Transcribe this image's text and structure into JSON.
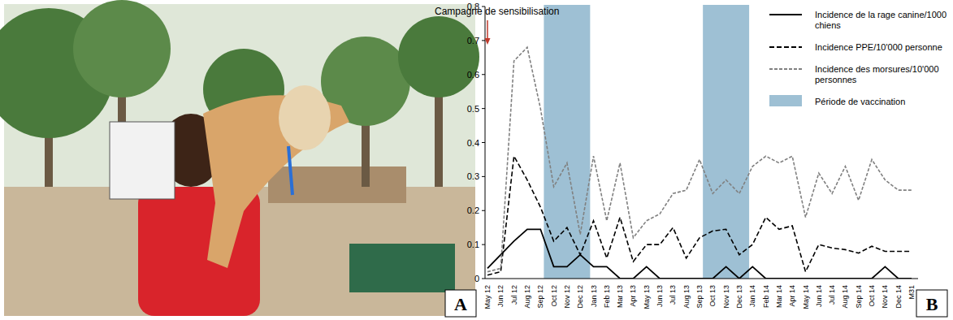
{
  "panel_labels": [
    "A",
    "B"
  ],
  "chart_data": {
    "type": "line",
    "categories": [
      "May 12",
      "Jun 12",
      "Jul 12",
      "Aug 12",
      "Sep 12",
      "Oct 12",
      "Nov 12",
      "Dec 12",
      "Jan 13",
      "Feb 13",
      "Mar 13",
      "Apr 13",
      "May 13",
      "Jun 13",
      "Jul 13",
      "Aug 13",
      "Sep 13",
      "Oct 13",
      "Nov 13",
      "Dec 13",
      "Jan 14",
      "Feb 14",
      "Mar 14",
      "Apr 14",
      "May 14",
      "Jun 14",
      "Jul 14",
      "Aug 14",
      "Sep 14",
      "Oct 14",
      "Nov 14",
      "Dec 14",
      "M31"
    ],
    "series": [
      {
        "name": "Incidence de la rage canine/1000 chiens",
        "color": "#000000",
        "line_style": "solid",
        "values": [
          0.03,
          0.07,
          0.11,
          0.145,
          0.145,
          0.035,
          0.035,
          0.07,
          0.035,
          0.035,
          0,
          0,
          0.035,
          0,
          0,
          0,
          0,
          0,
          0.035,
          0,
          0.035,
          0,
          0,
          0,
          0,
          0,
          0,
          0,
          0,
          0,
          0.035,
          0,
          0
        ]
      },
      {
        "name": "Incidence PPE/10'000 personne",
        "color": "#000000",
        "line_style": "dashed",
        "values": [
          0.01,
          0.02,
          0.36,
          0.29,
          0.21,
          0.11,
          0.15,
          0.07,
          0.17,
          0.06,
          0.18,
          0.05,
          0.1,
          0.1,
          0.15,
          0.06,
          0.12,
          0.14,
          0.145,
          0.07,
          0.1,
          0.18,
          0.145,
          0.155,
          0.02,
          0.1,
          0.09,
          0.085,
          0.075,
          0.095,
          0.08,
          0.08,
          0.08
        ]
      },
      {
        "name": "Incidence des morsures/10'000 personnes",
        "color": "#808080",
        "line_style": "dashed",
        "values": [
          0.02,
          0.03,
          0.64,
          0.68,
          0.5,
          0.27,
          0.34,
          0.13,
          0.36,
          0.17,
          0.34,
          0.12,
          0.17,
          0.19,
          0.25,
          0.26,
          0.35,
          0.25,
          0.29,
          0.25,
          0.33,
          0.36,
          0.34,
          0.36,
          0.18,
          0.31,
          0.25,
          0.33,
          0.23,
          0.35,
          0.29,
          0.26,
          0.26
        ]
      }
    ],
    "vaccination": {
      "label": "Période de vaccination",
      "color": "#9ec0d4",
      "periods": [
        {
          "start": "Oct 12",
          "end": "Dec 12"
        },
        {
          "start": "Oct 13",
          "end": "Dec 13"
        }
      ]
    },
    "annotation": {
      "text": "Campagne de sensibilisation",
      "x": "May 12",
      "color": "#c0392b"
    },
    "ylim": [
      0,
      0.8
    ],
    "yticks": [
      0,
      0.1,
      0.2,
      0.3,
      0.4,
      0.5,
      0.6,
      0.7,
      0.8
    ],
    "grid": false,
    "legend": "upper right"
  }
}
